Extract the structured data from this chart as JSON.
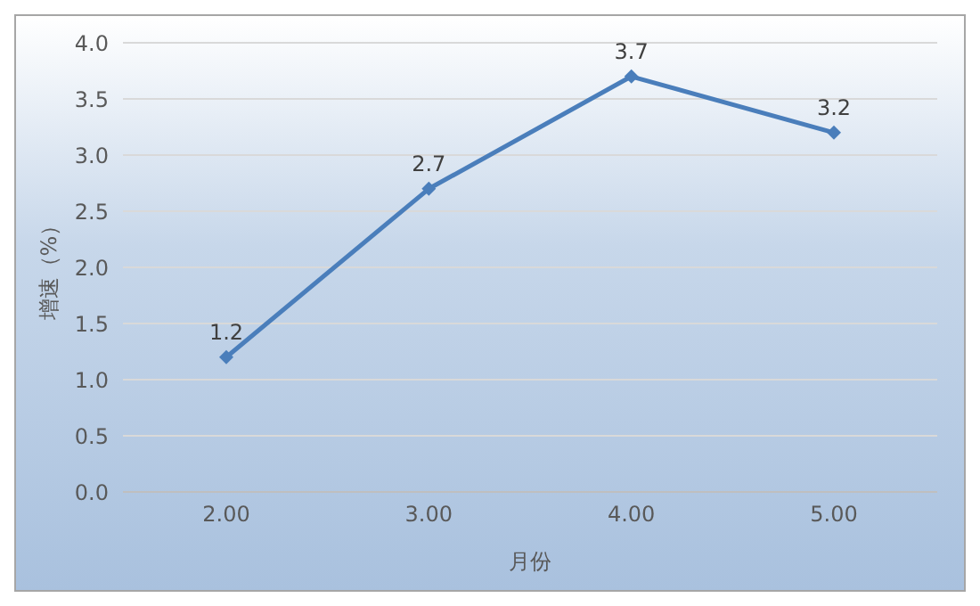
{
  "chart_data": {
    "type": "line",
    "xlabel": "月份",
    "ylabel": "增速（%）",
    "categories": [
      "2.00",
      "3.00",
      "4.00",
      "5.00"
    ],
    "series": [
      {
        "color": "#4a7ebb",
        "values": [
          1.2,
          2.7,
          3.7,
          3.2
        ]
      }
    ],
    "ylim": [
      0,
      4
    ],
    "yticks": [
      {
        "value": 0,
        "label": "0.0"
      },
      {
        "value": 0.5,
        "label": "0.5"
      },
      {
        "value": 1,
        "label": "1.0"
      },
      {
        "value": 1.5,
        "label": "1.5"
      },
      {
        "value": 2,
        "label": "2.0"
      },
      {
        "value": 2.5,
        "label": "2.5"
      },
      {
        "value": 3,
        "label": "3.0"
      },
      {
        "value": 3.5,
        "label": "3.5"
      },
      {
        "value": 4,
        "label": "4.0"
      }
    ],
    "grid": "y",
    "marker": "diamond",
    "line_style": "solid",
    "data_labels": true
  }
}
